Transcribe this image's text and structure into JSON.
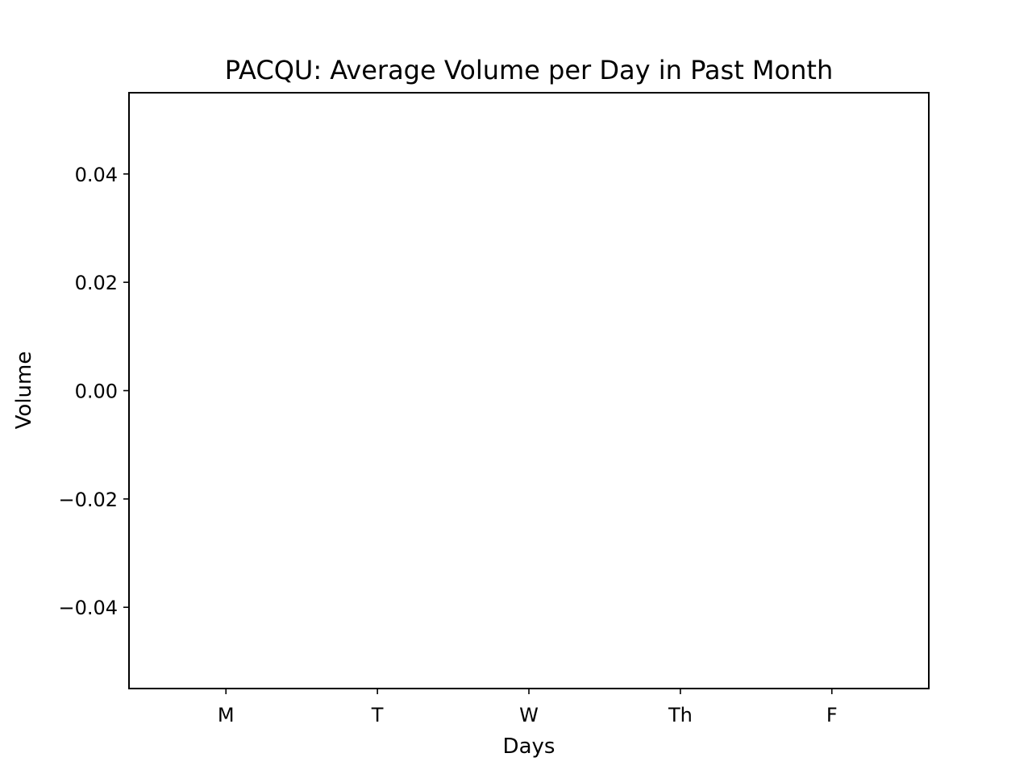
{
  "chart_data": {
    "type": "bar",
    "title": "PACQU: Average Volume per Day in Past Month",
    "xlabel": "Days",
    "ylabel": "Volume",
    "categories": [
      "M",
      "T",
      "W",
      "Th",
      "F"
    ],
    "values": [
      0,
      0,
      0,
      0,
      0
    ],
    "ylim": [
      -0.055,
      0.055
    ],
    "yticks": [
      0.04,
      0.02,
      0.0,
      -0.02,
      -0.04
    ],
    "ytick_labels": [
      "0.04",
      "0.02",
      "0.00",
      "−0.02",
      "−0.04"
    ],
    "grid": false,
    "legend": "none",
    "colors": {
      "bar": "#1f77b4",
      "axes": "#000000",
      "background": "#ffffff"
    }
  }
}
